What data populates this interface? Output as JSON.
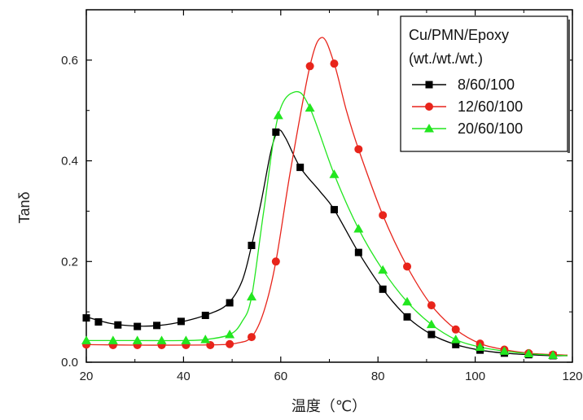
{
  "chart_data": {
    "type": "line",
    "title": "",
    "xlabel": "温度（℃）",
    "ylabel": "Tanδ",
    "xlim": [
      20,
      120
    ],
    "ylim": [
      0,
      0.7
    ],
    "xticks": [
      20,
      40,
      60,
      80,
      100,
      120
    ],
    "yticks": [
      0.0,
      0.2,
      0.4,
      0.6
    ],
    "xtick_labels": [
      "20",
      "40",
      "60",
      "80",
      "100",
      "120"
    ],
    "ytick_labels": [
      "0.0",
      "0.2",
      "0.4",
      "0.6"
    ],
    "grid": false,
    "legend": {
      "placement": "top-right",
      "title_lines": [
        "Cu/PMN/Epoxy",
        "(wt./wt./wt.)"
      ]
    },
    "series": [
      {
        "name": "8/60/100",
        "color": "#000000",
        "marker": "square",
        "x": [
          20,
          22.5,
          26.5,
          30.5,
          34.5,
          39.5,
          44.5,
          49.5,
          54,
          59,
          64,
          71,
          76,
          81,
          86,
          91,
          96,
          101,
          106,
          111,
          116
        ],
        "y": [
          0.088,
          0.08,
          0.074,
          0.071,
          0.073,
          0.081,
          0.093,
          0.118,
          0.232,
          0.457,
          0.387,
          0.303,
          0.218,
          0.145,
          0.09,
          0.055,
          0.035,
          0.024,
          0.018,
          0.015,
          0.013
        ],
        "curve": [
          [
            20,
            0.09
          ],
          [
            25,
            0.077
          ],
          [
            30,
            0.072
          ],
          [
            35,
            0.073
          ],
          [
            40,
            0.081
          ],
          [
            45,
            0.095
          ],
          [
            49,
            0.115
          ],
          [
            52,
            0.16
          ],
          [
            54,
            0.232
          ],
          [
            56,
            0.32
          ],
          [
            58,
            0.42
          ],
          [
            59.5,
            0.46
          ],
          [
            61,
            0.445
          ],
          [
            64,
            0.387
          ],
          [
            68,
            0.34
          ],
          [
            71,
            0.303
          ],
          [
            76,
            0.218
          ],
          [
            81,
            0.145
          ],
          [
            86,
            0.09
          ],
          [
            91,
            0.055
          ],
          [
            96,
            0.035
          ],
          [
            101,
            0.024
          ],
          [
            106,
            0.018
          ],
          [
            111,
            0.015
          ],
          [
            116,
            0.013
          ],
          [
            119,
            0.013
          ]
        ]
      },
      {
        "name": "12/60/100",
        "color": "#e8241b",
        "marker": "circle",
        "x": [
          20,
          25.5,
          30.5,
          35.5,
          40.5,
          45.5,
          49.5,
          54,
          59,
          66,
          71,
          76,
          81,
          86,
          91,
          96,
          101,
          106,
          111,
          116
        ],
        "y": [
          0.035,
          0.034,
          0.034,
          0.034,
          0.034,
          0.034,
          0.036,
          0.05,
          0.2,
          0.588,
          0.593,
          0.423,
          0.292,
          0.19,
          0.113,
          0.065,
          0.037,
          0.025,
          0.018,
          0.015
        ],
        "curve": [
          [
            20,
            0.035
          ],
          [
            30,
            0.034
          ],
          [
            40,
            0.034
          ],
          [
            48,
            0.035
          ],
          [
            51,
            0.038
          ],
          [
            54,
            0.05
          ],
          [
            56.5,
            0.1
          ],
          [
            59,
            0.2
          ],
          [
            62,
            0.38
          ],
          [
            66,
            0.588
          ],
          [
            68.5,
            0.645
          ],
          [
            71,
            0.593
          ],
          [
            73.5,
            0.5
          ],
          [
            76,
            0.423
          ],
          [
            81,
            0.292
          ],
          [
            86,
            0.19
          ],
          [
            91,
            0.113
          ],
          [
            96,
            0.065
          ],
          [
            101,
            0.037
          ],
          [
            106,
            0.025
          ],
          [
            111,
            0.018
          ],
          [
            116,
            0.015
          ],
          [
            119,
            0.014
          ]
        ]
      },
      {
        "name": "20/60/100",
        "color": "#22e61f",
        "marker": "triangle",
        "x": [
          20,
          25.5,
          30.5,
          35.5,
          40.5,
          44.5,
          49.5,
          54,
          59.5,
          66,
          71,
          76,
          81,
          86,
          91,
          96,
          101,
          106,
          111,
          116
        ],
        "y": [
          0.043,
          0.043,
          0.043,
          0.043,
          0.043,
          0.045,
          0.055,
          0.13,
          0.49,
          0.505,
          0.373,
          0.265,
          0.183,
          0.12,
          0.075,
          0.045,
          0.03,
          0.022,
          0.017,
          0.014
        ],
        "curve": [
          [
            20,
            0.043
          ],
          [
            30,
            0.043
          ],
          [
            40,
            0.043
          ],
          [
            44.5,
            0.045
          ],
          [
            49.5,
            0.055
          ],
          [
            52,
            0.08
          ],
          [
            54,
            0.13
          ],
          [
            56.5,
            0.3
          ],
          [
            59.5,
            0.49
          ],
          [
            63,
            0.537
          ],
          [
            66,
            0.505
          ],
          [
            71,
            0.373
          ],
          [
            76,
            0.265
          ],
          [
            81,
            0.183
          ],
          [
            86,
            0.12
          ],
          [
            91,
            0.075
          ],
          [
            96,
            0.045
          ],
          [
            101,
            0.03
          ],
          [
            106,
            0.022
          ],
          [
            111,
            0.017
          ],
          [
            116,
            0.014
          ],
          [
            119,
            0.013
          ]
        ]
      }
    ]
  }
}
